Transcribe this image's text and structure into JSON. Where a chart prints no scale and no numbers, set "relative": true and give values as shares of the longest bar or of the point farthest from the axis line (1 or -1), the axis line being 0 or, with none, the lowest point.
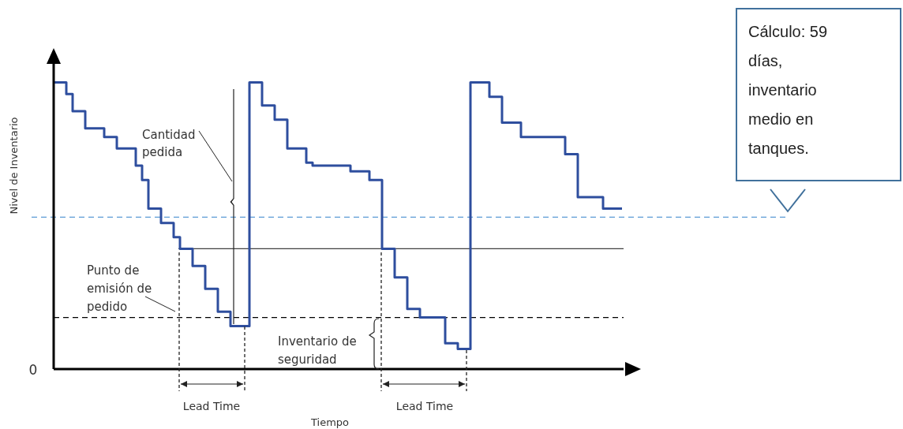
{
  "chart_data": {
    "type": "step",
    "relative": true,
    "xlabel": "Tiempo",
    "ylabel": "Nivel de Inventario",
    "marker": "none",
    "line_style": "solid",
    "categories": [
      null,
      null,
      null,
      null,
      null,
      null,
      null,
      null,
      null,
      null,
      null,
      null,
      null,
      null,
      null,
      null,
      null,
      null,
      null,
      null,
      null,
      null,
      null,
      null,
      null,
      null,
      null,
      null,
      null,
      null,
      null,
      null,
      null,
      null,
      null,
      null,
      null,
      null,
      null,
      null,
      null,
      null,
      null,
      null,
      null,
      null,
      null,
      null,
      null,
      null,
      null,
      null,
      null,
      null,
      null,
      null,
      null,
      null,
      null,
      null,
      null,
      null,
      null,
      null,
      null,
      null,
      null,
      null,
      null,
      null,
      null,
      null,
      null,
      null,
      null,
      null,
      null,
      null,
      null,
      null,
      null,
      null,
      null,
      null,
      null,
      null,
      null,
      null,
      null,
      null,
      null
    ],
    "series": [
      {
        "color": "#2e4e9e",
        "values": [
          1.0,
          1.0,
          0.96,
          0.9,
          0.9,
          0.84,
          0.84,
          0.84,
          0.81,
          0.81,
          0.77,
          0.77,
          0.77,
          0.71,
          0.66,
          0.56,
          0.56,
          0.51,
          0.51,
          0.46,
          0.42,
          0.42,
          0.36,
          0.36,
          0.28,
          0.28,
          0.2,
          0.2,
          0.15,
          0.15,
          0.15,
          1.0,
          1.0,
          0.92,
          0.92,
          0.87,
          0.87,
          0.77,
          0.77,
          0.77,
          0.72,
          0.71,
          0.71,
          0.71,
          0.71,
          0.71,
          0.71,
          0.69,
          0.69,
          0.69,
          0.66,
          0.66,
          0.42,
          0.42,
          0.32,
          0.32,
          0.21,
          0.21,
          0.18,
          0.18,
          0.18,
          0.18,
          0.09,
          0.09,
          0.07,
          0.07,
          1.0,
          1.0,
          1.0,
          0.95,
          0.95,
          0.86,
          0.86,
          0.86,
          0.81,
          0.81,
          0.81,
          0.81,
          0.81,
          0.81,
          0.81,
          0.75,
          0.75,
          0.6,
          0.6,
          0.6,
          0.6,
          0.56,
          0.56,
          0.56,
          0.56
        ]
      }
    ],
    "ref_lines": [
      {
        "axis": "y",
        "value": 0.42,
        "color": "#404040",
        "line_style": "solid"
      },
      {
        "axis": "y",
        "value": 0.18,
        "color": "#000000",
        "line_style": "dashed"
      },
      {
        "axis": "y",
        "value": 0.53,
        "color": "#5b9bd5",
        "line_style": "dashed"
      }
    ],
    "annotations": [
      "Cantidad pedida",
      "Punto de emisión de pedido",
      "Inventario de seguridad",
      "Lead Time",
      "Lead Time",
      "0",
      "Cálculo: 59 días, inventario medio en tanques."
    ]
  }
}
